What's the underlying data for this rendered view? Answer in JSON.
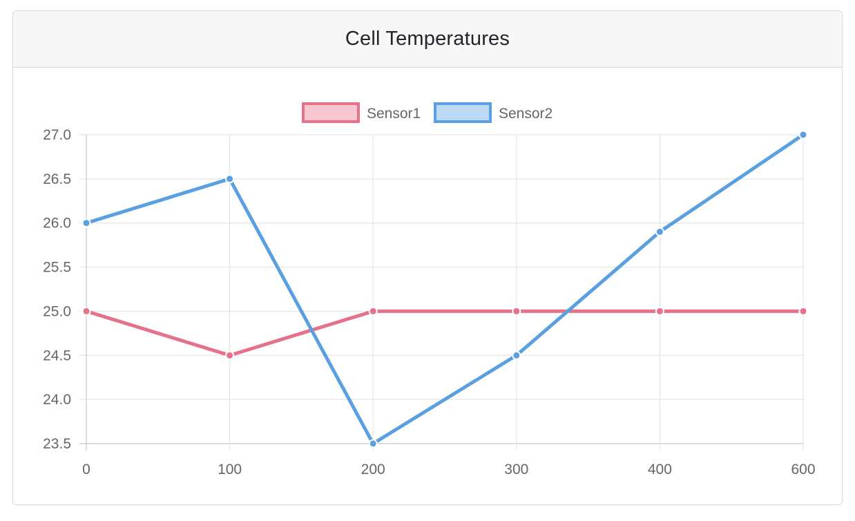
{
  "card": {
    "title": "Cell Temperatures"
  },
  "chart_data": {
    "type": "line",
    "title": "Cell Temperatures",
    "xlabel": "",
    "ylabel": "",
    "categories": [
      "0",
      "100",
      "200",
      "300",
      "400",
      "600"
    ],
    "ylim": [
      23.5,
      27.0
    ],
    "yticks": [
      "27.0",
      "26.5",
      "26.0",
      "25.5",
      "25.0",
      "24.5",
      "24.0",
      "23.5"
    ],
    "grid": true,
    "legend_position": "top",
    "series": [
      {
        "name": "Sensor1",
        "values": [
          25.0,
          24.5,
          25.0,
          25.0,
          25.0,
          25.0
        ],
        "color": "#e8718a",
        "fill": "#f9c7d2"
      },
      {
        "name": "Sensor2",
        "values": [
          26.0,
          26.5,
          23.5,
          24.5,
          25.9,
          27.0
        ],
        "color": "#5aa0e0",
        "fill": "#bcdaf5"
      }
    ]
  }
}
